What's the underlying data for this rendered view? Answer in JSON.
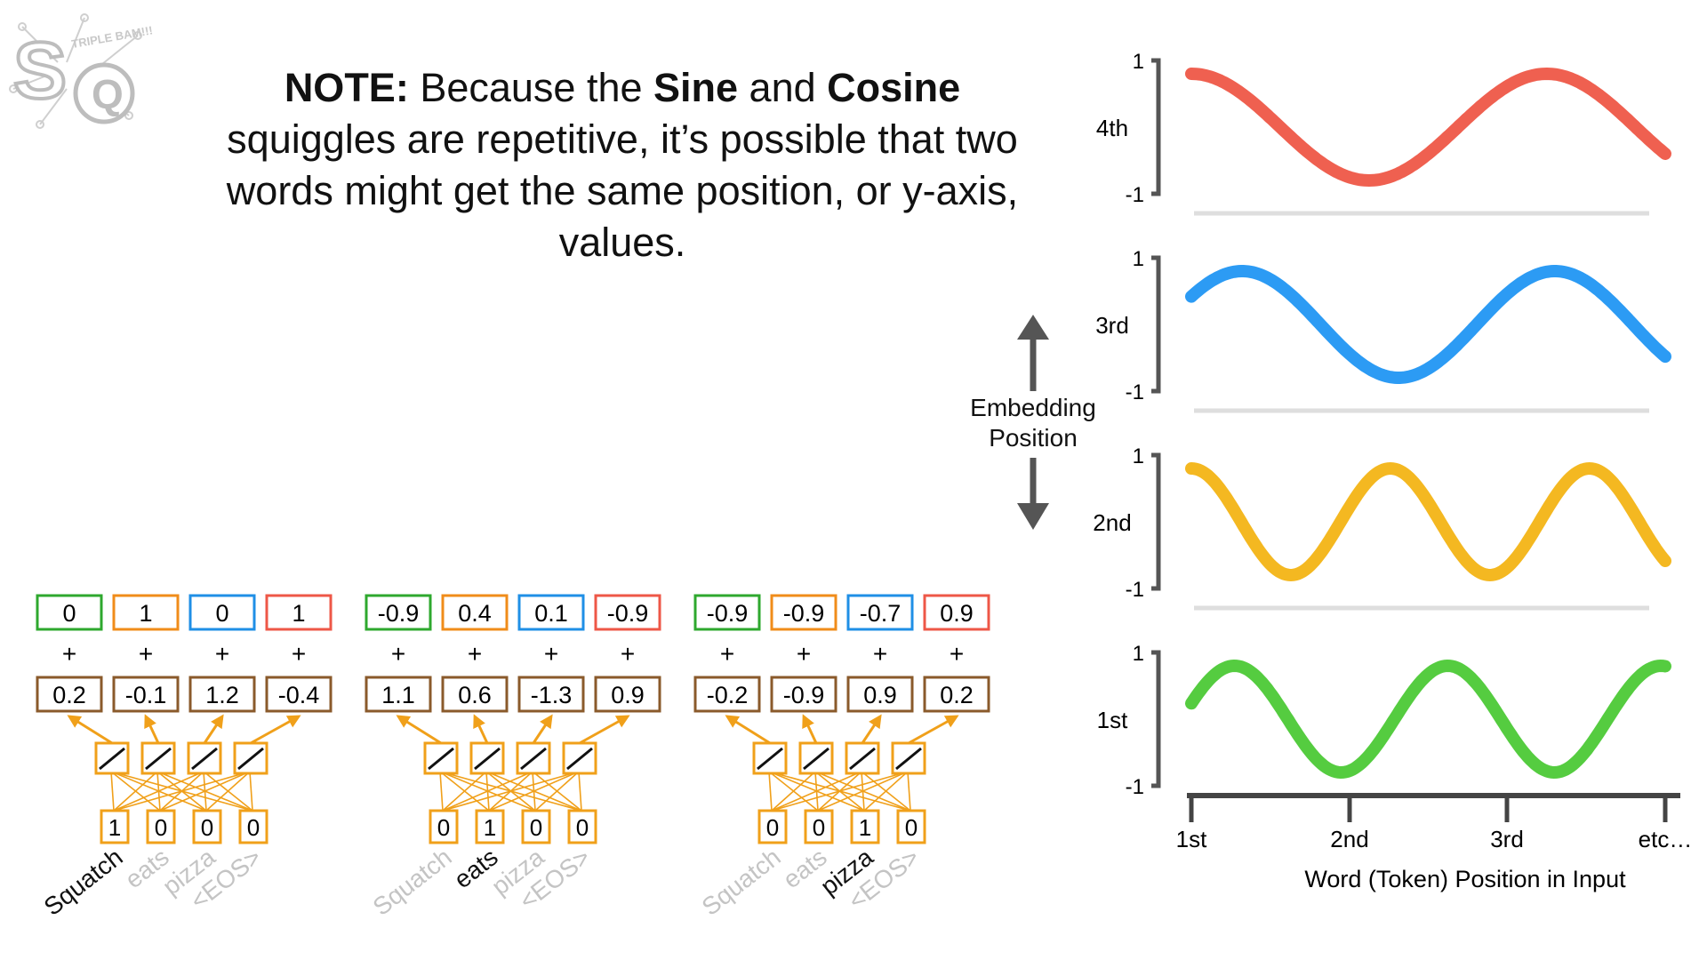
{
  "note": {
    "part1_bold": "NOTE:",
    "part2": " Because the ",
    "part3_bold": "Sine",
    "part4": " and ",
    "part5_bold": "Cosine",
    "part6": " squiggles are repetitive, it’s possible that two words might get the same position, or y-axis, values."
  },
  "logo": {
    "letters": "SQ",
    "tag": "TRIPLE BAM!!!"
  },
  "arrow_label": [
    "Embedding",
    "Position"
  ],
  "waves": [
    {
      "label": "4th",
      "ymax": "1",
      "ymin": "-1",
      "color": "#ee5747"
    },
    {
      "label": "3rd",
      "ymax": "1",
      "ymin": "-1",
      "color": "#2196f3"
    },
    {
      "label": "2nd",
      "ymax": "1",
      "ymin": "-1",
      "color": "#f3b415"
    },
    {
      "label": "1st",
      "ymax": "1",
      "ymin": "-1",
      "color": "#4cc936"
    }
  ],
  "x_ticks": [
    "1st",
    "2nd",
    "3rd",
    "etc…"
  ],
  "x_label": "Word (Token) Position in Input",
  "groups": [
    {
      "top": [
        "0",
        "1",
        "0",
        "1"
      ],
      "emb": [
        "0.2",
        "-0.1",
        "1.2",
        "-0.4"
      ],
      "onehot": [
        "1",
        "0",
        "0",
        "0"
      ],
      "words": [
        "Squatch",
        "eats",
        "pizza",
        "<EOS>"
      ],
      "active": 0
    },
    {
      "top": [
        "-0.9",
        "0.4",
        "0.1",
        "-0.9"
      ],
      "emb": [
        "1.1",
        "0.6",
        "-1.3",
        "0.9"
      ],
      "onehot": [
        "0",
        "1",
        "0",
        "0"
      ],
      "words": [
        "Squatch",
        "eats",
        "pizza",
        "<EOS>"
      ],
      "active": 1
    },
    {
      "top": [
        "-0.9",
        "-0.9",
        "-0.7",
        "0.9"
      ],
      "emb": [
        "-0.2",
        "-0.9",
        "0.9",
        "0.2"
      ],
      "onehot": [
        "0",
        "0",
        "1",
        "0"
      ],
      "words": [
        "Squatch",
        "eats",
        "pizza",
        "<EOS>"
      ],
      "active": 2
    }
  ],
  "plus": "+",
  "top_box_colors": [
    "#2ea82e",
    "#f08c1a",
    "#1f8fe6",
    "#ee5747"
  ],
  "emb_box_color": "#8a5a2b",
  "onehot_box_color": "#f0a01a"
}
